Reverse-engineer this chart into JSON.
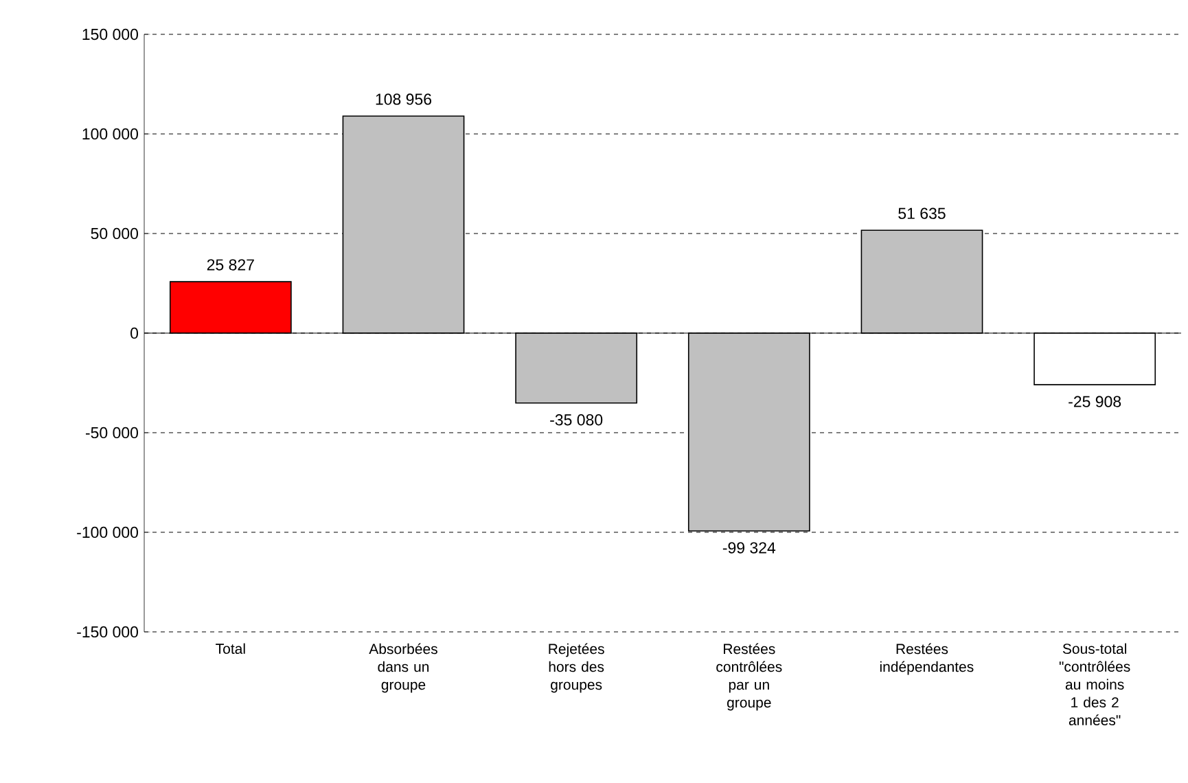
{
  "chart_data": {
    "type": "bar",
    "categories": [
      "Total",
      "Absorbées dans un groupe",
      "Rejetées hors des groupes",
      "Restées contrôlées par un groupe",
      "Restées indépendantes",
      "Sous-total \"contrôlées au moins 1 des 2 années\""
    ],
    "values": [
      25827,
      108956,
      -35080,
      -99324,
      51635,
      -25908
    ],
    "colors": [
      "#ff0000",
      "#c0c0c0",
      "#c0c0c0",
      "#c0c0c0",
      "#c0c0c0",
      "#ffffff"
    ],
    "value_labels": [
      "25 827",
      "108 956",
      "-35 080",
      "-99 324",
      "51 635",
      "-25 908"
    ],
    "ylim": [
      -150000,
      150000
    ],
    "yticks": [
      {
        "value": -150000,
        "label": "-150 000"
      },
      {
        "value": -100000,
        "label": "-100 000"
      },
      {
        "value": -50000,
        "label": "-50 000"
      },
      {
        "value": 0,
        "label": "0"
      },
      {
        "value": 50000,
        "label": "50 000"
      },
      {
        "value": 100000,
        "label": "100 000"
      },
      {
        "value": 150000,
        "label": "150 000"
      }
    ],
    "grid": "y"
  }
}
